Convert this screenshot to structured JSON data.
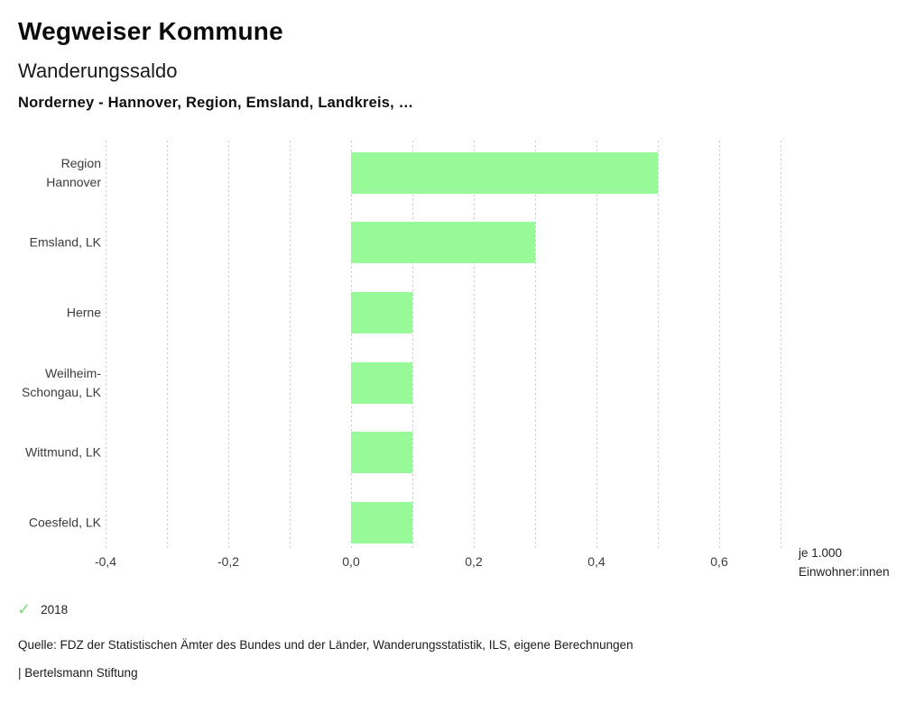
{
  "header": {
    "brand": "Wegweiser Kommune",
    "title": "Wanderungssaldo",
    "subtitle": "Norderney - Hannover, Region, Emsland, Landkreis, …"
  },
  "chart_data": {
    "type": "bar",
    "orientation": "horizontal",
    "title": "Wanderungssaldo",
    "categories": [
      "Region Hannover",
      "Emsland, LK",
      "Herne",
      "Weilheim-Schongau, LK",
      "Wittmund, LK",
      "Coesfeld, LK"
    ],
    "category_lines": [
      [
        "Region",
        "Hannover"
      ],
      [
        "Emsland, LK"
      ],
      [
        "Herne"
      ],
      [
        "Weilheim-",
        "Schongau, LK"
      ],
      [
        "Wittmund, LK"
      ],
      [
        "Coesfeld, LK"
      ]
    ],
    "series": [
      {
        "name": "2018",
        "values": [
          0.5,
          0.3,
          0.1,
          0.1,
          0.1,
          0.1
        ],
        "color": "#98f998"
      }
    ],
    "xlabel": "je 1.000 Einwohner:innen",
    "x_unit_label_lines": [
      "je 1.000",
      "Einwohner:innen"
    ],
    "x_ticks": [
      -0.4,
      -0.2,
      0,
      0.2,
      0.4,
      0.6
    ],
    "x_tick_labels": [
      "-0,4",
      "-0,2",
      "0,0",
      "0,2",
      "0,4",
      "0,6"
    ],
    "grid": true,
    "grid_xlim": [
      -0.4,
      0.7
    ],
    "grid_step": 0.1,
    "legend": {
      "position": "bottom-left",
      "items": [
        {
          "label": "2018",
          "marker": "check-icon",
          "color": "#7fd87f"
        }
      ]
    }
  },
  "colors": {
    "bar_green": "#98f998",
    "legend_check_green": "#7fd87f",
    "gridline_gray": "#c9c9c9"
  },
  "footer": {
    "source": "Quelle: FDZ der Statistischen Ämter des Bundes und der Länder, Wanderungsstatistik, ILS, eigene Berechnungen",
    "attribution": "| Bertelsmann Stiftung"
  }
}
